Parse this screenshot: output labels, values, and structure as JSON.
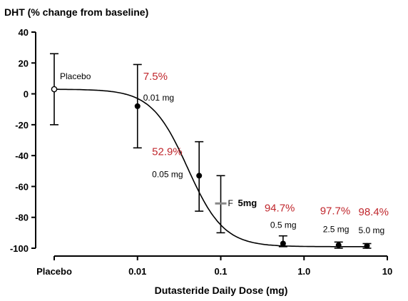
{
  "chart_data": {
    "type": "line",
    "title": "DHT (% change from baseline)",
    "xlabel": "Dutasteride Daily Dose (mg)",
    "ylabel": "",
    "ylim": [
      -100,
      40
    ],
    "yticks": [
      40,
      20,
      0,
      -20,
      -40,
      -60,
      -80,
      -100
    ],
    "x_scale": "log",
    "xticks": [
      {
        "label": "Placebo",
        "x": 0.001
      },
      {
        "label": "0.01",
        "x": 0.01
      },
      {
        "label": "0.1",
        "x": 0.1
      },
      {
        "label": "1.0",
        "x": 1.0
      },
      {
        "label": "10",
        "x": 10
      }
    ],
    "grid": false,
    "points": [
      {
        "name": "Placebo",
        "label": "Placebo",
        "x": 0.001,
        "y": 3,
        "err_low": -20,
        "err_high": 26,
        "marker": "open"
      },
      {
        "name": "0.01mg",
        "label": "0.01 mg",
        "x": 0.01,
        "y": -8,
        "err_low": -35,
        "err_high": 19,
        "marker": "filled",
        "pct": "7.5%"
      },
      {
        "name": "0.05mg",
        "label": "0.05 mg",
        "x": 0.055,
        "y": -53,
        "err_low": -76,
        "err_high": -31,
        "marker": "filled",
        "pct": "52.9%"
      },
      {
        "name": "F",
        "label": "F",
        "x": 0.1,
        "y": -71,
        "err_low": -90,
        "err_high": -53,
        "marker": "dash",
        "extra": "5mg"
      },
      {
        "name": "0.5mg",
        "label": "0.5 mg",
        "x": 0.56,
        "y": -97,
        "err_low": -99,
        "err_high": -92,
        "marker": "filled",
        "pct": "94.7%"
      },
      {
        "name": "2.5mg",
        "label": "2.5 mg",
        "x": 2.6,
        "y": -98,
        "err_low": -100,
        "err_high": -96,
        "marker": "filled",
        "pct": "97.7%"
      },
      {
        "name": "5.0mg",
        "label": "5.0 mg",
        "x": 5.7,
        "y": -98.5,
        "err_low": -100,
        "err_high": -97,
        "marker": "filled",
        "pct": "98.4%"
      }
    ],
    "curve": {
      "top": 3,
      "bottom": -99,
      "ic50": 0.04,
      "hill": 2
    }
  }
}
